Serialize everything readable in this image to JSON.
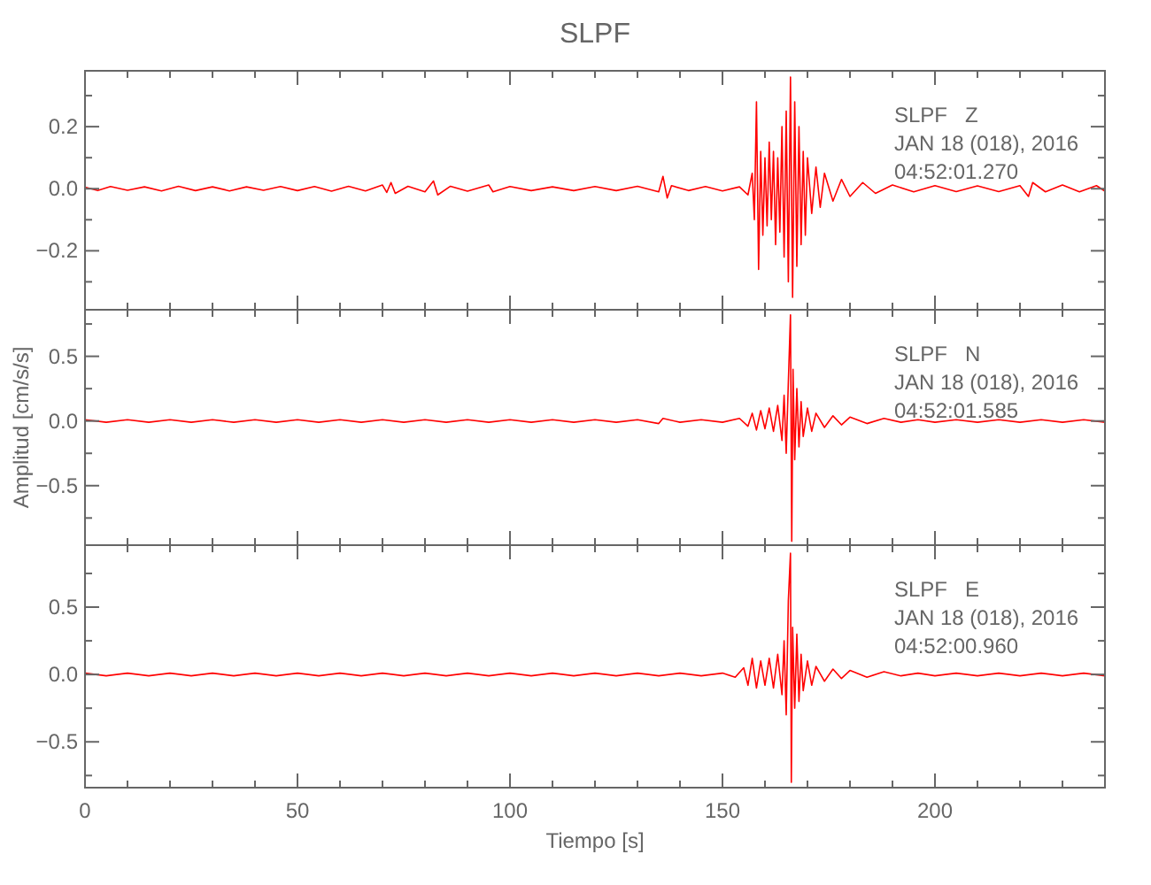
{
  "chart_data": [
    {
      "type": "line",
      "title": "SLPF",
      "annotations": [
        "SLPF   Z",
        "JAN 18 (018), 2016",
        "04:52:01.270"
      ],
      "tick_labels": "y",
      "xlim": [
        0,
        240
      ],
      "ylim": [
        -0.39,
        0.38
      ],
      "xticks": [
        {
          "value": 0,
          "label": null
        },
        {
          "value": 10,
          "label": null
        },
        {
          "value": 20,
          "label": null
        },
        {
          "value": 30,
          "label": null
        },
        {
          "value": 40,
          "label": null
        },
        {
          "value": 50,
          "label": null
        },
        {
          "value": 60,
          "label": null
        },
        {
          "value": 70,
          "label": null
        },
        {
          "value": 80,
          "label": null
        },
        {
          "value": 90,
          "label": null
        },
        {
          "value": 100,
          "label": null
        },
        {
          "value": 110,
          "label": null
        },
        {
          "value": 120,
          "label": null
        },
        {
          "value": 130,
          "label": null
        },
        {
          "value": 140,
          "label": null
        },
        {
          "value": 150,
          "label": null
        },
        {
          "value": 160,
          "label": null
        },
        {
          "value": 170,
          "label": null
        },
        {
          "value": 180,
          "label": null
        },
        {
          "value": 190,
          "label": null
        },
        {
          "value": 200,
          "label": null
        },
        {
          "value": 210,
          "label": null
        },
        {
          "value": 220,
          "label": null
        },
        {
          "value": 230,
          "label": null
        }
      ],
      "yticks": [
        {
          "value": -0.3,
          "label": null
        },
        {
          "value": -0.2,
          "label": "−0.2"
        },
        {
          "value": -0.1,
          "label": null
        },
        {
          "value": 0,
          "label": "0.0"
        },
        {
          "value": 0.1,
          "label": null
        },
        {
          "value": 0.2,
          "label": "0.2"
        },
        {
          "value": 0.3,
          "label": null
        }
      ],
      "grid": false,
      "marker": "none",
      "line_style": "solid",
      "series": [
        {
          "color": "#ff0000",
          "x": [
            0,
            3,
            6,
            10,
            14,
            18,
            22,
            26,
            30,
            34,
            38,
            42,
            46,
            50,
            54,
            58,
            62,
            66,
            70,
            71,
            72,
            73,
            76,
            80,
            82,
            83,
            86,
            90,
            95,
            96,
            100,
            105,
            110,
            115,
            120,
            125,
            130,
            135,
            136,
            137,
            138,
            142,
            146,
            150,
            154,
            156,
            157,
            157.5,
            158,
            158.5,
            159,
            159.5,
            160,
            160.5,
            161,
            161.5,
            162,
            162.5,
            163,
            163.5,
            164,
            164.5,
            165,
            165.5,
            166,
            166.5,
            167,
            167.5,
            168,
            168.5,
            169,
            169.5,
            170,
            171,
            172,
            173,
            174,
            176,
            178,
            180,
            183,
            186,
            190,
            195,
            200,
            205,
            210,
            215,
            220,
            222,
            223,
            226,
            230,
            234,
            238,
            240
          ],
          "values": [
            0.005,
            -0.006,
            0.007,
            -0.005,
            0.006,
            -0.007,
            0.008,
            -0.006,
            0.006,
            -0.007,
            0.006,
            -0.005,
            0.007,
            -0.006,
            0.007,
            -0.008,
            0.008,
            -0.007,
            0.012,
            -0.012,
            0.02,
            -0.015,
            0.008,
            -0.01,
            0.025,
            -0.02,
            0.008,
            -0.008,
            0.012,
            -0.01,
            0.007,
            -0.006,
            0.006,
            -0.006,
            0.007,
            -0.006,
            0.008,
            -0.01,
            0.04,
            -0.03,
            0.01,
            -0.006,
            0.007,
            -0.007,
            0.006,
            -0.02,
            0.05,
            -0.1,
            0.28,
            -0.26,
            0.12,
            -0.15,
            0.1,
            -0.12,
            0.15,
            -0.1,
            0.12,
            -0.18,
            0.1,
            -0.14,
            0.2,
            -0.22,
            0.25,
            -0.3,
            0.36,
            -0.35,
            0.28,
            -0.25,
            0.2,
            -0.18,
            0.12,
            -0.15,
            0.1,
            -0.08,
            0.07,
            -0.06,
            0.05,
            -0.04,
            0.03,
            -0.025,
            0.02,
            -0.015,
            0.012,
            -0.01,
            0.01,
            -0.009,
            0.009,
            -0.009,
            0.01,
            -0.025,
            0.02,
            -0.01,
            0.012,
            -0.01,
            0.01,
            -0.008
          ]
        }
      ]
    },
    {
      "type": "line",
      "ylabel": "Amplitud [cm/s/s]",
      "annotations": [
        "SLPF   N",
        "JAN 18 (018), 2016",
        "04:52:01.585"
      ],
      "tick_labels": "y",
      "xlim": [
        0,
        240
      ],
      "ylim": [
        -0.96,
        0.86
      ],
      "xticks": [
        {
          "value": 0,
          "label": null
        },
        {
          "value": 10,
          "label": null
        },
        {
          "value": 20,
          "label": null
        },
        {
          "value": 30,
          "label": null
        },
        {
          "value": 40,
          "label": null
        },
        {
          "value": 50,
          "label": null
        },
        {
          "value": 60,
          "label": null
        },
        {
          "value": 70,
          "label": null
        },
        {
          "value": 80,
          "label": null
        },
        {
          "value": 90,
          "label": null
        },
        {
          "value": 100,
          "label": null
        },
        {
          "value": 110,
          "label": null
        },
        {
          "value": 120,
          "label": null
        },
        {
          "value": 130,
          "label": null
        },
        {
          "value": 140,
          "label": null
        },
        {
          "value": 150,
          "label": null
        },
        {
          "value": 160,
          "label": null
        },
        {
          "value": 170,
          "label": null
        },
        {
          "value": 180,
          "label": null
        },
        {
          "value": 190,
          "label": null
        },
        {
          "value": 200,
          "label": null
        },
        {
          "value": 210,
          "label": null
        },
        {
          "value": 220,
          "label": null
        },
        {
          "value": 230,
          "label": null
        }
      ],
      "yticks": [
        {
          "value": -0.75,
          "label": null
        },
        {
          "value": -0.5,
          "label": "−0.5"
        },
        {
          "value": -0.25,
          "label": null
        },
        {
          "value": 0,
          "label": "0.0"
        },
        {
          "value": 0.25,
          "label": null
        },
        {
          "value": 0.5,
          "label": "0.5"
        },
        {
          "value": 0.75,
          "label": null
        }
      ],
      "grid": false,
      "marker": "none",
      "line_style": "solid",
      "series": [
        {
          "color": "#ff0000",
          "x": [
            0,
            5,
            10,
            15,
            20,
            25,
            30,
            35,
            40,
            45,
            50,
            55,
            60,
            65,
            70,
            75,
            80,
            85,
            90,
            95,
            100,
            105,
            110,
            115,
            120,
            125,
            130,
            135,
            136,
            140,
            145,
            150,
            154,
            156,
            157,
            158,
            159,
            160,
            161,
            162,
            163,
            164,
            164.5,
            165,
            165.5,
            166,
            166.3,
            166.6,
            167,
            167.5,
            168,
            168.5,
            169,
            170,
            171,
            172,
            174,
            176,
            178,
            180,
            184,
            188,
            192,
            196,
            200,
            205,
            210,
            215,
            220,
            225,
            230,
            235,
            240
          ],
          "values": [
            0.01,
            -0.01,
            0.01,
            -0.01,
            0.01,
            -0.01,
            0.01,
            -0.01,
            0.01,
            -0.01,
            0.01,
            -0.01,
            0.01,
            -0.01,
            0.01,
            -0.01,
            0.01,
            -0.01,
            0.01,
            -0.01,
            0.01,
            -0.01,
            0.01,
            -0.01,
            0.01,
            -0.01,
            0.01,
            -0.02,
            0.02,
            -0.01,
            0.01,
            -0.01,
            0.02,
            -0.04,
            0.06,
            -0.07,
            0.08,
            -0.06,
            0.1,
            -0.08,
            0.12,
            -0.15,
            0.2,
            -0.25,
            0.3,
            0.82,
            -0.93,
            0.4,
            -0.3,
            0.25,
            -0.2,
            0.15,
            -0.12,
            0.1,
            -0.08,
            0.06,
            -0.05,
            0.04,
            -0.03,
            0.03,
            -0.02,
            0.02,
            -0.01,
            0.01,
            -0.01,
            0.01,
            -0.01,
            0.01,
            -0.01,
            0.01,
            -0.01,
            0.01,
            -0.01
          ]
        }
      ]
    },
    {
      "type": "line",
      "xlabel": "Tiempo [s]",
      "annotations": [
        "SLPF   E",
        "JAN 18 (018), 2016",
        "04:52:00.960"
      ],
      "xlim": [
        0,
        240
      ],
      "ylim": [
        -0.84,
        0.96
      ],
      "xticks": [
        0,
        {
          "value": 10,
          "label": null
        },
        {
          "value": 20,
          "label": null
        },
        {
          "value": 30,
          "label": null
        },
        {
          "value": 40,
          "label": null
        },
        50,
        {
          "value": 60,
          "label": null
        },
        {
          "value": 70,
          "label": null
        },
        {
          "value": 80,
          "label": null
        },
        {
          "value": 90,
          "label": null
        },
        100,
        {
          "value": 110,
          "label": null
        },
        {
          "value": 120,
          "label": null
        },
        {
          "value": 130,
          "label": null
        },
        {
          "value": 140,
          "label": null
        },
        150,
        {
          "value": 160,
          "label": null
        },
        {
          "value": 170,
          "label": null
        },
        {
          "value": 180,
          "label": null
        },
        {
          "value": 190,
          "label": null
        },
        200,
        {
          "value": 210,
          "label": null
        },
        {
          "value": 220,
          "label": null
        },
        {
          "value": 230,
          "label": null
        }
      ],
      "yticks": [
        {
          "value": -0.75,
          "label": null
        },
        {
          "value": -0.5,
          "label": "−0.5"
        },
        {
          "value": -0.25,
          "label": null
        },
        {
          "value": 0,
          "label": "0.0"
        },
        {
          "value": 0.25,
          "label": null
        },
        {
          "value": 0.5,
          "label": "0.5"
        },
        {
          "value": 0.75,
          "label": null
        }
      ],
      "grid": false,
      "marker": "none",
      "line_style": "solid",
      "series": [
        {
          "color": "#ff0000",
          "x": [
            0,
            5,
            10,
            15,
            20,
            25,
            30,
            35,
            40,
            45,
            50,
            55,
            60,
            65,
            70,
            75,
            80,
            85,
            90,
            95,
            100,
            105,
            110,
            115,
            120,
            125,
            130,
            135,
            140,
            145,
            150,
            153,
            155,
            156,
            157,
            158,
            159,
            160,
            161,
            162,
            163,
            164,
            164.5,
            165,
            165.5,
            166,
            166.2,
            166.5,
            167,
            167.5,
            168,
            168.5,
            169,
            170,
            171,
            172,
            174,
            176,
            178,
            180,
            184,
            188,
            192,
            196,
            200,
            205,
            210,
            215,
            220,
            225,
            230,
            235,
            240
          ],
          "values": [
            0.01,
            -0.01,
            0.01,
            -0.01,
            0.01,
            -0.01,
            0.01,
            -0.01,
            0.01,
            -0.01,
            0.01,
            -0.01,
            0.01,
            -0.01,
            0.01,
            -0.01,
            0.01,
            -0.01,
            0.01,
            -0.01,
            0.01,
            -0.01,
            0.01,
            -0.01,
            0.01,
            -0.01,
            0.01,
            -0.01,
            0.01,
            -0.01,
            0.01,
            -0.02,
            0.05,
            -0.08,
            0.12,
            -0.1,
            0.1,
            -0.08,
            0.12,
            -0.1,
            0.15,
            -0.15,
            0.25,
            -0.3,
            0.55,
            0.9,
            -0.8,
            0.35,
            -0.25,
            0.3,
            -0.2,
            0.15,
            -0.12,
            0.1,
            -0.08,
            0.06,
            -0.05,
            0.04,
            -0.03,
            0.03,
            -0.02,
            0.02,
            -0.01,
            0.01,
            -0.01,
            0.01,
            -0.01,
            0.01,
            -0.01,
            0.01,
            -0.01,
            0.01,
            -0.01
          ]
        }
      ]
    }
  ]
}
